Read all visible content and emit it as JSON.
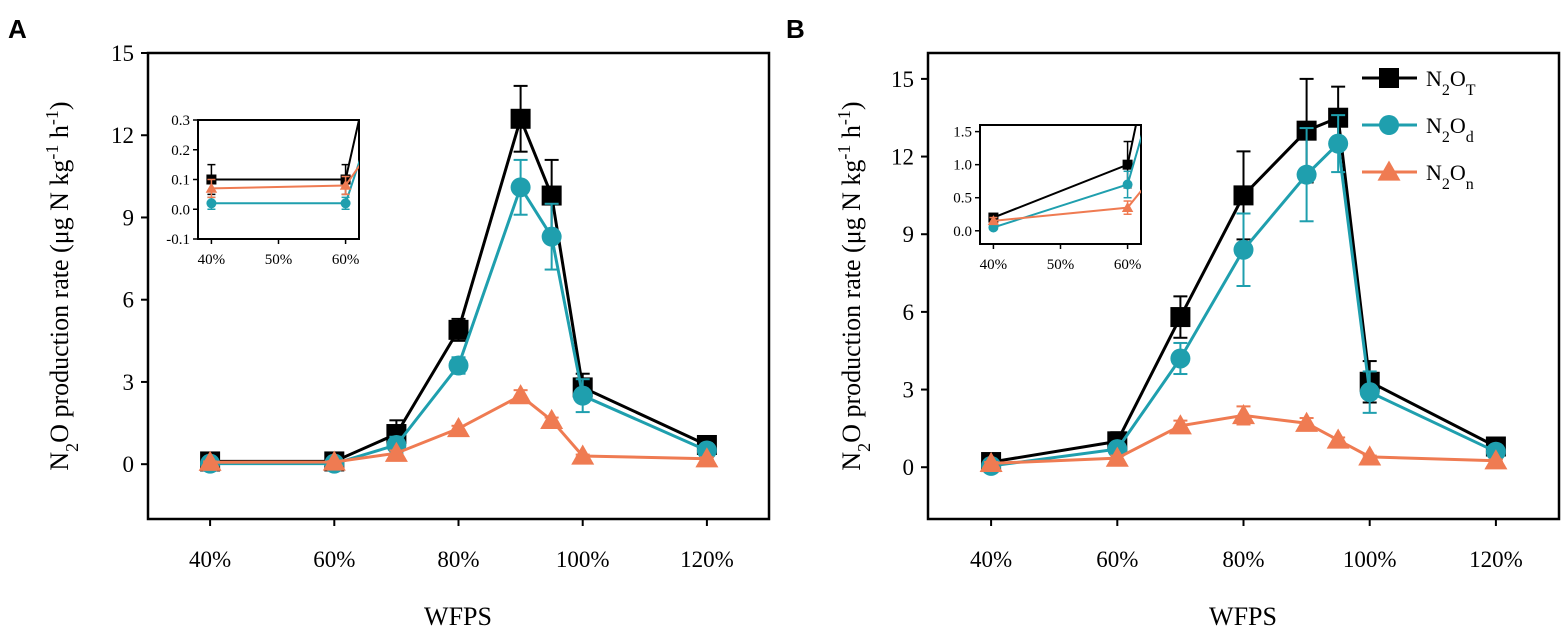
{
  "colors": {
    "total": "#000000",
    "denitrification": "#1f9fae",
    "nitrification": "#ef7b52"
  },
  "legend": [
    {
      "key": "total",
      "label": "N2OT",
      "base": "N",
      "sub1": "2",
      "mid": "O",
      "sub2": "T",
      "marker": "square"
    },
    {
      "key": "denitrification",
      "label": "N2Od",
      "base": "N",
      "sub1": "2",
      "mid": "O",
      "sub2": "d",
      "marker": "circle"
    },
    {
      "key": "nitrification",
      "label": "N2On",
      "base": "N",
      "sub1": "2",
      "mid": "O",
      "sub2": "n",
      "marker": "triangle"
    }
  ],
  "chart_data": [
    {
      "panel": "A",
      "type": "line",
      "xlabel": "WFPS",
      "ylabel": "N2O production rate (μg N kg-1 h-1)",
      "x": [
        40,
        60,
        70,
        80,
        90,
        95,
        100,
        120
      ],
      "x_tick_values": [
        40,
        60,
        80,
        100,
        120
      ],
      "x_tick_labels": [
        "40%",
        "60%",
        "80%",
        "100%",
        "120%"
      ],
      "xlim": [
        30,
        130
      ],
      "ylim": [
        -2,
        15
      ],
      "y_tick_values": [
        0,
        3,
        6,
        9,
        12,
        15
      ],
      "y_tick_labels": [
        "0",
        "3",
        "6",
        "9",
        "12",
        "15"
      ],
      "series": [
        {
          "key": "total",
          "name": "N2OT",
          "values": [
            0.1,
            0.1,
            1.1,
            4.9,
            12.6,
            9.8,
            2.8,
            0.7
          ],
          "errors": [
            0.05,
            0.05,
            0.5,
            0.4,
            1.2,
            1.3,
            0.5,
            0.1
          ]
        },
        {
          "key": "denitrification",
          "name": "N2Od",
          "values": [
            0.02,
            0.02,
            0.7,
            3.6,
            10.1,
            8.3,
            2.5,
            0.5
          ],
          "errors": [
            0.02,
            0.02,
            0.3,
            0.3,
            1.0,
            1.2,
            0.6,
            0.1
          ]
        },
        {
          "key": "nitrification",
          "name": "N2On",
          "values": [
            0.07,
            0.08,
            0.4,
            1.3,
            2.5,
            1.6,
            0.3,
            0.2
          ],
          "errors": [
            0.03,
            0.03,
            0.1,
            0.1,
            0.2,
            0.1,
            0.05,
            0.05
          ]
        }
      ],
      "inset": {
        "x_tick_values": [
          40,
          50,
          60
        ],
        "x_tick_labels": [
          "40%",
          "50%",
          "60%"
        ],
        "xlim": [
          38,
          62
        ],
        "ylim": [
          -0.1,
          0.3
        ],
        "y_tick_values": [
          -0.1,
          0.0,
          0.1,
          0.2,
          0.3
        ],
        "y_tick_labels": [
          "-0.1",
          "0.0",
          "0.1",
          "0.2",
          "0.3"
        ]
      }
    },
    {
      "panel": "B",
      "type": "line",
      "xlabel": "WFPS",
      "ylabel": "N2O production rate (μg N kg-1 h-1)",
      "x": [
        40,
        60,
        70,
        80,
        90,
        95,
        100,
        120
      ],
      "x_tick_values": [
        40,
        60,
        80,
        100,
        120
      ],
      "x_tick_labels": [
        "40%",
        "60%",
        "80%",
        "100%",
        "120%"
      ],
      "xlim": [
        30,
        130
      ],
      "ylim": [
        -2,
        16
      ],
      "y_tick_values": [
        0,
        3,
        6,
        9,
        12,
        15
      ],
      "y_tick_labels": [
        "0",
        "3",
        "6",
        "9",
        "12",
        "15"
      ],
      "series": [
        {
          "key": "total",
          "name": "N2OT",
          "values": [
            0.2,
            1.0,
            5.8,
            10.5,
            13.0,
            13.5,
            3.3,
            0.8
          ],
          "errors": [
            0.05,
            0.35,
            0.8,
            1.7,
            2.0,
            1.2,
            0.8,
            0.1
          ]
        },
        {
          "key": "denitrification",
          "name": "N2Od",
          "values": [
            0.05,
            0.7,
            4.2,
            8.4,
            11.3,
            12.5,
            2.9,
            0.6
          ],
          "errors": [
            0.03,
            0.2,
            0.6,
            1.4,
            1.8,
            1.1,
            0.8,
            0.1
          ]
        },
        {
          "key": "nitrification",
          "name": "N2On",
          "values": [
            0.15,
            0.35,
            1.6,
            2.0,
            1.7,
            1.05,
            0.4,
            0.25
          ],
          "errors": [
            0.05,
            0.1,
            0.2,
            0.35,
            0.2,
            0.1,
            0.05,
            0.05
          ]
        }
      ],
      "inset": {
        "x_tick_values": [
          40,
          50,
          60
        ],
        "x_tick_labels": [
          "40%",
          "50%",
          "60%"
        ],
        "xlim": [
          38,
          62
        ],
        "ylim": [
          -0.2,
          1.6
        ],
        "y_tick_values": [
          0.0,
          0.5,
          1.0,
          1.5
        ],
        "y_tick_labels": [
          "0.0",
          "0.5",
          "1.0",
          "1.5"
        ]
      }
    }
  ]
}
